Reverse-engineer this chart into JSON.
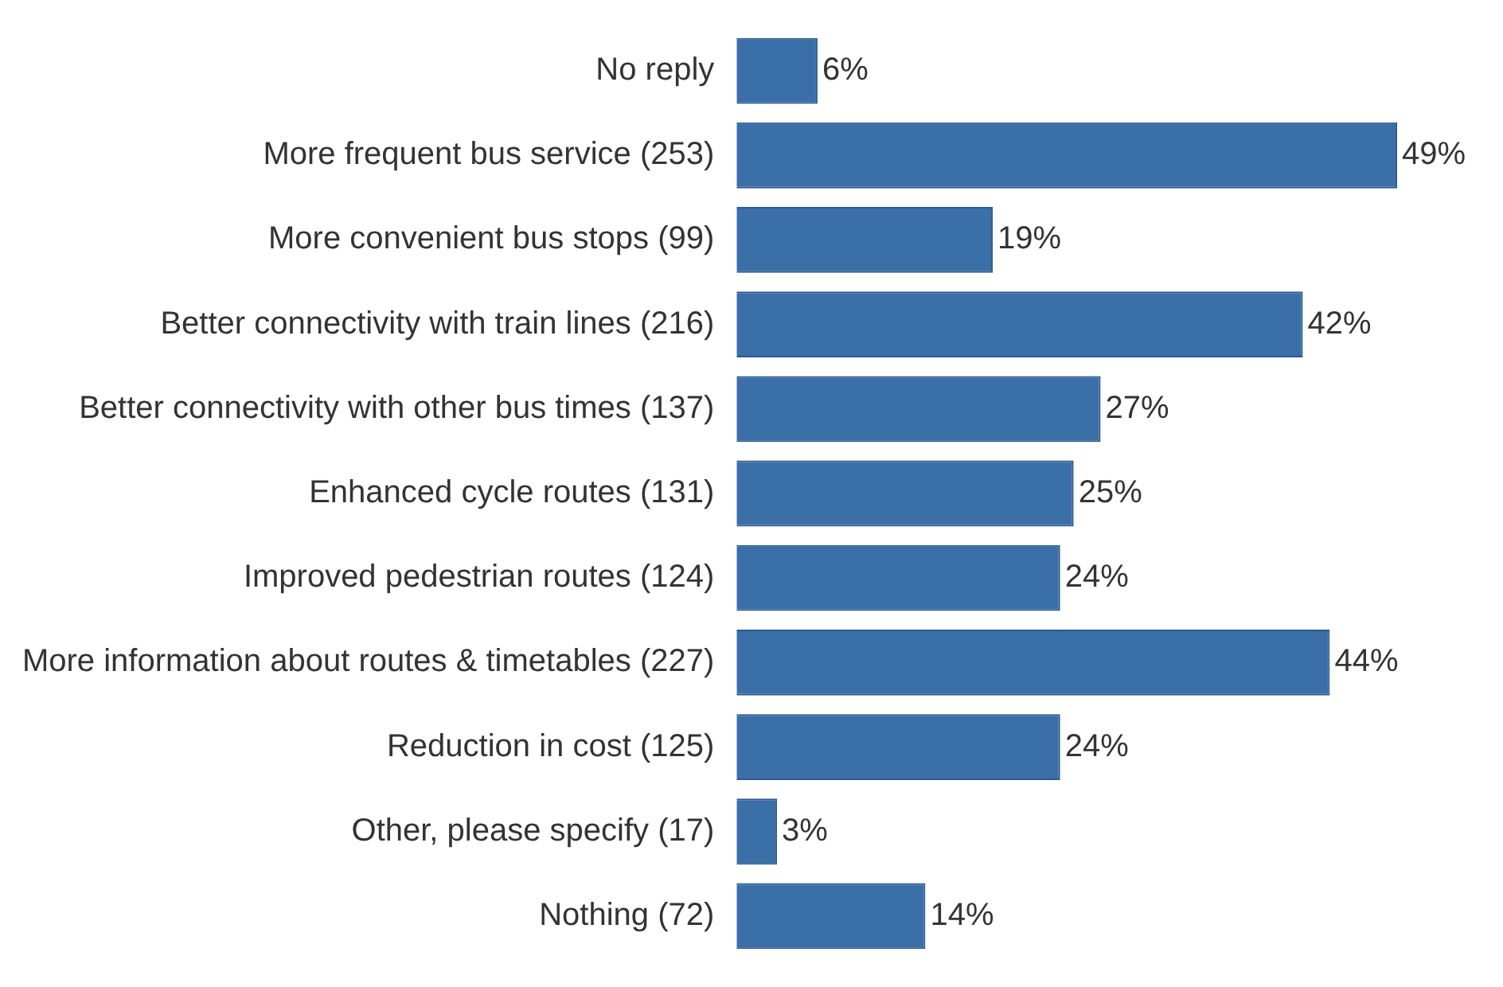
{
  "chart_data": {
    "type": "bar",
    "orientation": "horizontal",
    "categories": [
      "No reply",
      "More frequent bus service (253)",
      "More convenient bus stops (99)",
      "Better connectivity with train lines (216)",
      "Better connectivity with other bus times (137)",
      "Enhanced cycle routes (131)",
      "Improved pedestrian routes (124)",
      "More information about routes & timetables (227)",
      "Reduction in cost (125)",
      "Other, please specify (17)",
      "Nothing (72)"
    ],
    "values": [
      6,
      49,
      19,
      42,
      27,
      25,
      24,
      44,
      24,
      3,
      14
    ],
    "value_labels": [
      "6%",
      "49%",
      "19%",
      "42%",
      "27%",
      "25%",
      "24%",
      "44%",
      "24%",
      "3%",
      "14%"
    ],
    "color": "#3a6fa8"
  }
}
